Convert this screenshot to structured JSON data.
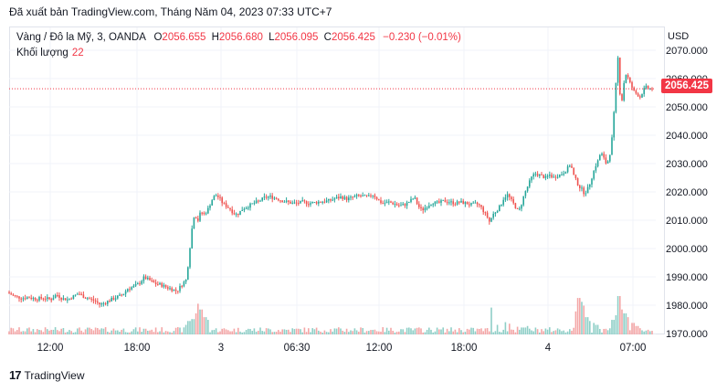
{
  "header": {
    "published_text": "Đã xuất bản TradingView.com, Tháng Năm 04, 2023 07:33 UTC+7"
  },
  "legend": {
    "symbol": "Vàng / Đô la Mỹ, 3, OANDA",
    "open_label": "O",
    "open": "2056.655",
    "high_label": "H",
    "high": "2056.680",
    "low_label": "L",
    "low": "2056.095",
    "close_label": "C",
    "close": "2056.425",
    "change": "−0.230 (−0.01%)",
    "volume_label": "Khối lượng",
    "volume": "22"
  },
  "axis": {
    "currency": "USD",
    "last_price": "2056.425"
  },
  "footer": {
    "brand": "TradingView",
    "logo_icon": "tradingview-logo-icon"
  },
  "colors": {
    "up": "#26a69a",
    "down": "#ef5350",
    "vol_up": "#8fcfc7",
    "vol_down": "#f4a6a6",
    "price_line": "#f23645"
  },
  "chart_data": {
    "type": "candlestick",
    "y_unit": "USD",
    "ylim": [
      1968,
      2072
    ],
    "yticks": [
      "1970.000",
      "1980.000",
      "1990.000",
      "2000.000",
      "2010.000",
      "2020.000",
      "2030.000",
      "2040.000",
      "2050.000",
      "2060.000",
      "2070.000"
    ],
    "xticks": [
      "12:00",
      "18:00",
      "3",
      "06:30",
      "12:00",
      "18:00",
      "4",
      "07:00"
    ],
    "last_price": 2056.425,
    "price_path": [
      [
        0,
        1984.5
      ],
      [
        8,
        1983.2
      ],
      [
        16,
        1982.5
      ],
      [
        24,
        1982.8
      ],
      [
        32,
        1982.2
      ],
      [
        40,
        1982.6
      ],
      [
        48,
        1982.0
      ],
      [
        54,
        1983.8
      ],
      [
        60,
        1982.4
      ],
      [
        66,
        1982.0
      ],
      [
        72,
        1983.0
      ],
      [
        78,
        1984.2
      ],
      [
        84,
        1983.0
      ],
      [
        90,
        1982.3
      ],
      [
        96,
        1981.5
      ],
      [
        102,
        1980.2
      ],
      [
        108,
        1981.0
      ],
      [
        114,
        1982.0
      ],
      [
        120,
        1982.8
      ],
      [
        126,
        1983.6
      ],
      [
        132,
        1985.8
      ],
      [
        138,
        1986.5
      ],
      [
        144,
        1987.5
      ],
      [
        150,
        1989.8
      ],
      [
        156,
        1988.8
      ],
      [
        162,
        1987.6
      ],
      [
        168,
        1987.3
      ],
      [
        174,
        1986.4
      ],
      [
        180,
        1985.7
      ],
      [
        186,
        1985.0
      ],
      [
        192,
        1987.5
      ],
      [
        196,
        1989.0
      ],
      [
        198,
        1994.0
      ],
      [
        200,
        2000.0
      ],
      [
        202,
        2006.0
      ],
      [
        204,
        2011.0
      ],
      [
        206,
        2012.5
      ],
      [
        208,
        2009.0
      ],
      [
        212,
        2013.0
      ],
      [
        216,
        2012.0
      ],
      [
        220,
        2014.0
      ],
      [
        224,
        2017.0
      ],
      [
        228,
        2019.0
      ],
      [
        232,
        2018.0
      ],
      [
        236,
        2016.0
      ],
      [
        240,
        2015.0
      ],
      [
        244,
        2014.0
      ],
      [
        248,
        2012.5
      ],
      [
        252,
        2012.0
      ],
      [
        258,
        2014.0
      ],
      [
        264,
        2015.0
      ],
      [
        270,
        2016.0
      ],
      [
        276,
        2016.8
      ],
      [
        282,
        2018.0
      ],
      [
        288,
        2018.3
      ],
      [
        294,
        2017.8
      ],
      [
        300,
        2017.0
      ],
      [
        306,
        2016.5
      ],
      [
        312,
        2016.0
      ],
      [
        318,
        2016.0
      ],
      [
        324,
        2016.5
      ],
      [
        330,
        2016.0
      ],
      [
        336,
        2016.2
      ],
      [
        342,
        2016.5
      ],
      [
        348,
        2016.7
      ],
      [
        354,
        2017.0
      ],
      [
        360,
        2017.8
      ],
      [
        366,
        2018.2
      ],
      [
        372,
        2017.5
      ],
      [
        378,
        2018.0
      ],
      [
        384,
        2018.6
      ],
      [
        390,
        2018.4
      ],
      [
        396,
        2018.2
      ],
      [
        400,
        2019.2
      ],
      [
        404,
        2018.0
      ],
      [
        408,
        2016.5
      ],
      [
        412,
        2016.0
      ],
      [
        418,
        2016.4
      ],
      [
        424,
        2015.8
      ],
      [
        430,
        2015.0
      ],
      [
        436,
        2015.6
      ],
      [
        442,
        2017.0
      ],
      [
        446,
        2018.0
      ],
      [
        450,
        2015.0
      ],
      [
        454,
        2013.5
      ],
      [
        458,
        2014.5
      ],
      [
        462,
        2015.5
      ],
      [
        466,
        2016.3
      ],
      [
        472,
        2016.0
      ],
      [
        478,
        2016.8
      ],
      [
        484,
        2016.5
      ],
      [
        490,
        2016.0
      ],
      [
        496,
        2016.4
      ],
      [
        502,
        2016.0
      ],
      [
        508,
        2015.5
      ],
      [
        514,
        2015.8
      ],
      [
        518,
        2015.0
      ],
      [
        522,
        2013.0
      ],
      [
        526,
        2011.0
      ],
      [
        528,
        2009.5
      ],
      [
        532,
        2012.0
      ],
      [
        536,
        2013.5
      ],
      [
        540,
        2015.0
      ],
      [
        544,
        2018.0
      ],
      [
        548,
        2019.0
      ],
      [
        552,
        2017.0
      ],
      [
        556,
        2015.0
      ],
      [
        560,
        2013.0
      ],
      [
        562,
        2014.5
      ],
      [
        566,
        2019.0
      ],
      [
        570,
        2022.0
      ],
      [
        574,
        2025.0
      ],
      [
        578,
        2026.5
      ],
      [
        582,
        2026.0
      ],
      [
        586,
        2025.5
      ],
      [
        590,
        2025.0
      ],
      [
        594,
        2026.0
      ],
      [
        598,
        2025.0
      ],
      [
        602,
        2025.8
      ],
      [
        606,
        2026.0
      ],
      [
        610,
        2027.0
      ],
      [
        614,
        2028.5
      ],
      [
        617,
        2030.0
      ],
      [
        620,
        2026.0
      ],
      [
        623,
        2024.0
      ],
      [
        626,
        2022.0
      ],
      [
        629,
        2021.0
      ],
      [
        632,
        2019.5
      ],
      [
        635,
        2020.5
      ],
      [
        638,
        2023.0
      ],
      [
        641,
        2026.0
      ],
      [
        644,
        2029.0
      ],
      [
        647,
        2031.0
      ],
      [
        650,
        2034.0
      ],
      [
        653,
        2032.0
      ],
      [
        656,
        2030.0
      ],
      [
        659,
        2031.5
      ],
      [
        662,
        2038.0
      ],
      [
        665,
        2050.0
      ],
      [
        667,
        2060.0
      ],
      [
        669,
        2068.0
      ],
      [
        671,
        2055.0
      ],
      [
        673,
        2052.0
      ],
      [
        675,
        2058.0
      ],
      [
        678,
        2062.0
      ],
      [
        681,
        2059.0
      ],
      [
        684,
        2057.0
      ],
      [
        687,
        2055.0
      ],
      [
        690,
        2054.5
      ],
      [
        693,
        2053.5
      ],
      [
        696,
        2055.5
      ],
      [
        699,
        2057.0
      ],
      [
        702,
        2056.5
      ],
      [
        705,
        2056.4
      ]
    ],
    "volume_spikes": [
      [
        47,
        12
      ],
      [
        193,
        25
      ],
      [
        197,
        35
      ],
      [
        201,
        40
      ],
      [
        204,
        55
      ],
      [
        207,
        80
      ],
      [
        210,
        65
      ],
      [
        214,
        45
      ],
      [
        218,
        38
      ],
      [
        458,
        12
      ],
      [
        528,
        70
      ],
      [
        534,
        25
      ],
      [
        543,
        32
      ],
      [
        548,
        28
      ],
      [
        556,
        20
      ],
      [
        564,
        18
      ],
      [
        568,
        22
      ],
      [
        621,
        60
      ],
      [
        624,
        95
      ],
      [
        627,
        85
      ],
      [
        630,
        75
      ],
      [
        633,
        45
      ],
      [
        636,
        35
      ],
      [
        640,
        30
      ],
      [
        644,
        25
      ],
      [
        661,
        38
      ],
      [
        664,
        50
      ],
      [
        668,
        100
      ],
      [
        671,
        65
      ],
      [
        674,
        55
      ],
      [
        678,
        45
      ],
      [
        683,
        30
      ],
      [
        688,
        22
      ]
    ]
  }
}
